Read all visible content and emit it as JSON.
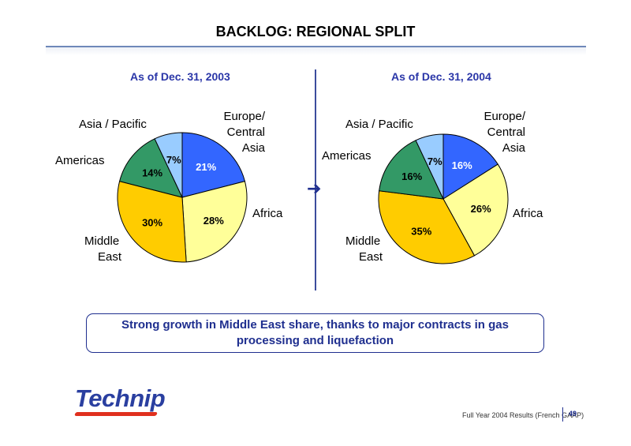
{
  "title": "BACKLOG: REGIONAL SPLIT",
  "note": "Strong growth in Middle East share, thanks to major contracts in gas processing and liquefaction",
  "logo_text": "Technip",
  "footer": "Full Year 2004 Results (French GAAP)",
  "page_number": "49",
  "arrow_icon": "right-arrow-icon",
  "colors": {
    "europe": "#3366ff",
    "africa": "#ffff99",
    "middle_east": "#ffcc00",
    "americas": "#339966",
    "asia": "#99ccff",
    "accent": "#2a36a8"
  },
  "chart_data": [
    {
      "type": "pie",
      "title": "As of Dec. 31, 2003",
      "categories": [
        "Europe/ Central Asia",
        "Africa",
        "Middle East",
        "Americas",
        "Asia / Pacific"
      ],
      "values": [
        21,
        28,
        30,
        14,
        7
      ],
      "data_labels": [
        "21%",
        "28%",
        "30%",
        "14%",
        "7%"
      ]
    },
    {
      "type": "pie",
      "title": "As of Dec. 31, 2004",
      "categories": [
        "Europe/ Central Asia",
        "Africa",
        "Middle East",
        "Americas",
        "Asia / Pacific"
      ],
      "values": [
        16,
        26,
        35,
        16,
        7
      ],
      "data_labels": [
        "16%",
        "26%",
        "35%",
        "16%",
        "7%"
      ]
    }
  ]
}
